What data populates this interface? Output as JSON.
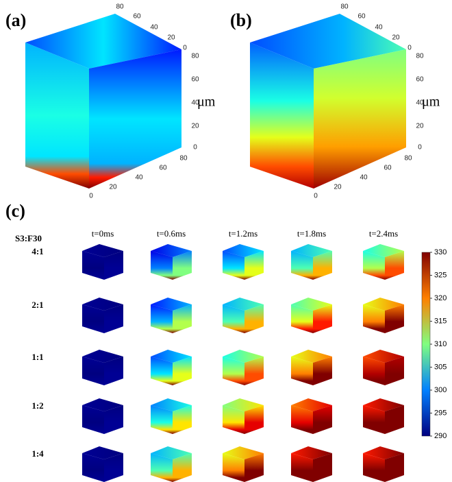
{
  "panels": [
    {
      "label": "(a)",
      "unit": "μm",
      "top_ticks": [
        80,
        60,
        40,
        20,
        0
      ],
      "side_ticks": [
        80,
        60,
        40,
        20,
        0
      ],
      "bottom_ticks": [
        0,
        20,
        40,
        60,
        80
      ]
    },
    {
      "label": "(b)",
      "unit": "μm",
      "top_ticks": [
        80,
        60,
        40,
        20,
        0
      ],
      "side_ticks": [
        80,
        60,
        40,
        20,
        0
      ],
      "bottom_ticks": [
        0,
        20,
        40,
        60,
        80
      ]
    }
  ],
  "grid": {
    "label": "(c)",
    "corner": "S3:F30",
    "columns": [
      "t=0ms",
      "t=0.6ms",
      "t=1.2ms",
      "t=1.8ms",
      "t=2.4ms"
    ],
    "rows": [
      "4:1",
      "2:1",
      "1:1",
      "1:2",
      "1:4"
    ]
  },
  "colorbar": {
    "ticks": [
      330,
      325,
      320,
      315,
      310,
      305,
      300,
      295,
      290
    ]
  }
}
